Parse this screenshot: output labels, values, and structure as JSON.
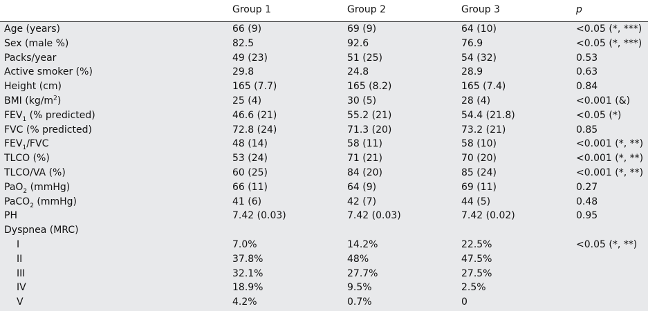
{
  "header": [
    "",
    "Group 1",
    "Group 2",
    "Group 3",
    "p"
  ],
  "rows": [
    {
      "label": "Age (years)",
      "g1": "66 (9)",
      "g2": "69 (9)",
      "g3": "64 (10)",
      "p": "<0.05 (*, ***)"
    },
    {
      "label": "Sex (male %)",
      "g1": "82.5",
      "g2": "92.6",
      "g3": "76.9",
      "p": "<0.05 (*, ***)"
    },
    {
      "label": "Packs/year",
      "g1": "49 (23)",
      "g2": "51 (25)",
      "g3": "54 (32)",
      "p": "0.53"
    },
    {
      "label": "Active smoker (%)",
      "g1": "29.8",
      "g2": "24.8",
      "g3": "28.9",
      "p": "0.63"
    },
    {
      "label": "Height (cm)",
      "g1": "165 (7.7)",
      "g2": "165 (8.2)",
      "g3": "165 (7.4)",
      "p": "0.84"
    },
    {
      "label_pre": "BMI (kg/m",
      "label_sup": "2",
      "label_post": ")",
      "g1": "25 (4)",
      "g2": "30 (5)",
      "g3": "28 (4)",
      "p": "<0.001 (&)"
    },
    {
      "label_pre": "FEV",
      "label_sub": "1",
      "label_post": " (% predicted)",
      "g1": "46.6 (21)",
      "g2": "55.2 (21)",
      "g3": "54.4 (21.8)",
      "p": "<0.05 (*)"
    },
    {
      "label": "FVC (% predicted)",
      "g1": "72.8 (24)",
      "g2": "71.3 (20)",
      "g3": "73.2 (21)",
      "p": "0.85"
    },
    {
      "label_pre": "FEV",
      "label_sub": "1",
      "label_post": "/FVC",
      "g1": "48 (14)",
      "g2": "58 (11)",
      "g3": "58 (10)",
      "p": "<0.001 (*, **)"
    },
    {
      "label": "TLCO (%)",
      "g1": "53 (24)",
      "g2": "71 (21)",
      "g3": "70 (20)",
      "p": "<0.001 (*, **)"
    },
    {
      "label": "TLCO/VA (%)",
      "g1": "60 (25)",
      "g2": "84 (20)",
      "g3": "85 (24)",
      "p": "<0.001 (*, **)"
    },
    {
      "label_pre": "PaO",
      "label_sub": "2",
      "label_post": " (mmHg)",
      "g1": "66 (11)",
      "g2": "64 (9)",
      "g3": "69 (11)",
      "p": "0.27"
    },
    {
      "label_pre": "PaCO",
      "label_sub": "2",
      "label_post": " (mmHg)",
      "g1": "41 (6)",
      "g2": "42 (7)",
      "g3": "44 (5)",
      "p": "0.48"
    },
    {
      "label": "PH",
      "g1": "7.42 (0.03)",
      "g2": "7.42 (0.03)",
      "g3": "7.42 (0.02)",
      "p": "0.95"
    },
    {
      "label": "Dyspnea (MRC)",
      "g1": "",
      "g2": "",
      "g3": "",
      "p": ""
    },
    {
      "label": "I",
      "indent": true,
      "g1": "7.0%",
      "g2": "14.2%",
      "g3": "22.5%",
      "p": "<0.05 (*, **)"
    },
    {
      "label": "II",
      "indent": true,
      "g1": "37.8%",
      "g2": "48%",
      "g3": "47.5%",
      "p": ""
    },
    {
      "label": "III",
      "indent": true,
      "g1": "32.1%",
      "g2": "27.7%",
      "g3": "27.5%",
      "p": ""
    },
    {
      "label": "IV",
      "indent": true,
      "g1": "18.9%",
      "g2": "9.5%",
      "g3": "2.5%",
      "p": ""
    },
    {
      "label": "V",
      "indent": true,
      "g1": "4.2%",
      "g2": "0.7%",
      "g3": "0",
      "p": ""
    }
  ]
}
